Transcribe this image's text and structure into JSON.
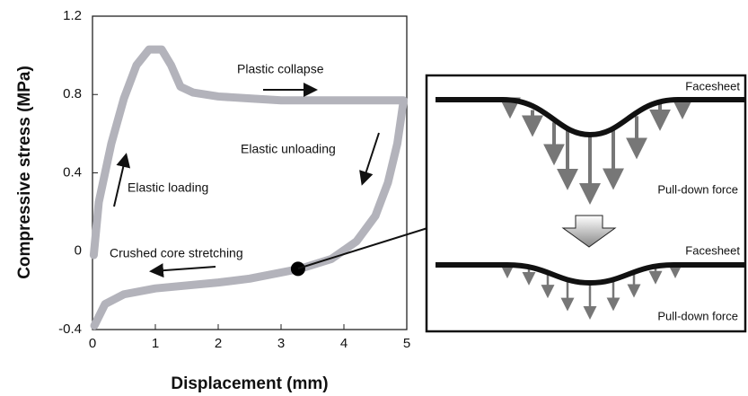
{
  "chart_data": {
    "type": "line",
    "x_label": "Displacement (mm)",
    "y_label": "Compressive stress (MPa)",
    "xlim": [
      0,
      5
    ],
    "xticks": [
      0,
      1,
      2,
      3,
      4,
      5
    ],
    "ylim": [
      -0.4,
      1.2
    ],
    "yticks": [
      -0.4,
      0,
      0.4,
      0.8,
      1.2
    ],
    "series": [
      {
        "color": "#b3b3bb",
        "x": [
          0.02,
          0.1,
          0.3,
          0.5,
          0.7,
          0.9,
          1.1,
          1.25,
          1.4,
          1.6,
          2,
          2.5,
          3,
          3.5,
          4,
          4.5,
          4.95,
          4.85,
          4.7,
          4.5,
          4.2,
          3.8,
          3.3,
          2.5,
          2,
          1,
          0.5,
          0.2,
          0.03
        ],
        "values": [
          -0.02,
          0.25,
          0.55,
          0.78,
          0.95,
          1.03,
          1.03,
          0.95,
          0.84,
          0.81,
          0.79,
          0.78,
          0.77,
          0.77,
          0.77,
          0.77,
          0.77,
          0.55,
          0.35,
          0.18,
          0.05,
          -0.04,
          -0.09,
          -0.14,
          -0.16,
          -0.19,
          -0.22,
          -0.27,
          -0.38
        ]
      }
    ],
    "highlight_point": {
      "x": 3.27,
      "y": -0.09
    },
    "annotations": [
      "Plastic collapse",
      "Elastic unloading",
      "Elastic loading",
      "Crushed core stretching"
    ]
  },
  "inset": {
    "top": {
      "label": "Facesheet",
      "force_label": "Pull-down force"
    },
    "bottom": {
      "label": "Facesheet",
      "force_label": "Pull-down force"
    }
  }
}
